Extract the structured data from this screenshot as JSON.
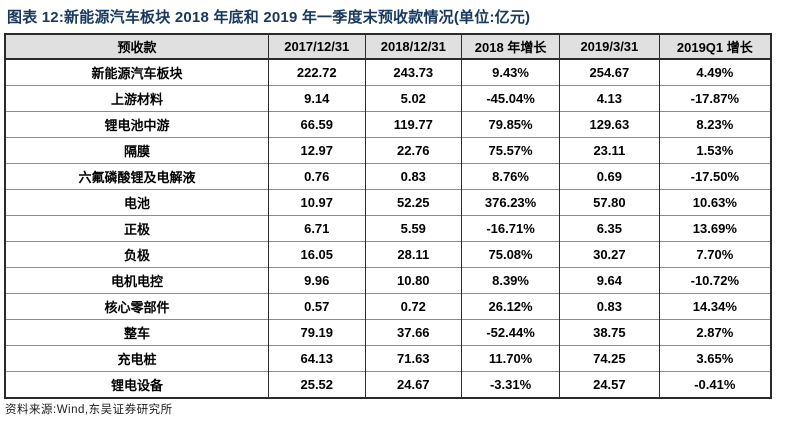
{
  "page": {
    "title": "图表 12:新能源汽车板块 2018 年底和 2019 年一季度末预收款情况(单位:亿元)",
    "source_note": "资料来源:Wind,东吴证券研究所"
  },
  "colors": {
    "title_text": "#17375E",
    "header_bg": "#E0E0E0",
    "body_text": "#000000",
    "grid_dark": "#2B2B2B",
    "grid_light": "#8C8C8C"
  },
  "table": {
    "headers": [
      "预收款",
      "2017/12/31",
      "2018/12/31",
      "2018 年增长",
      "2019/3/31",
      "2019Q1 增长"
    ],
    "rows": [
      [
        "新能源汽车板块",
        "222.72",
        "243.73",
        "9.43%",
        "254.67",
        "4.49%"
      ],
      [
        "上游材料",
        "9.14",
        "5.02",
        "-45.04%",
        "4.13",
        "-17.87%"
      ],
      [
        "锂电池中游",
        "66.59",
        "119.77",
        "79.85%",
        "129.63",
        "8.23%"
      ],
      [
        "隔膜",
        "12.97",
        "22.76",
        "75.57%",
        "23.11",
        "1.53%"
      ],
      [
        "六氟磷酸锂及电解液",
        "0.76",
        "0.83",
        "8.76%",
        "0.69",
        "-17.50%"
      ],
      [
        "电池",
        "10.97",
        "52.25",
        "376.23%",
        "57.80",
        "10.63%"
      ],
      [
        "正极",
        "6.71",
        "5.59",
        "-16.71%",
        "6.35",
        "13.69%"
      ],
      [
        "负极",
        "16.05",
        "28.11",
        "75.08%",
        "30.27",
        "7.70%"
      ],
      [
        "电机电控",
        "9.96",
        "10.80",
        "8.39%",
        "9.64",
        "-10.72%"
      ],
      [
        "核心零部件",
        "0.57",
        "0.72",
        "26.12%",
        "0.83",
        "14.34%"
      ],
      [
        "整车",
        "79.19",
        "37.66",
        "-52.44%",
        "38.75",
        "2.87%"
      ],
      [
        "充电桩",
        "64.13",
        "71.63",
        "11.70%",
        "74.25",
        "3.65%"
      ],
      [
        "锂电设备",
        "25.52",
        "24.67",
        "-3.31%",
        "24.57",
        "-0.41%"
      ]
    ]
  }
}
